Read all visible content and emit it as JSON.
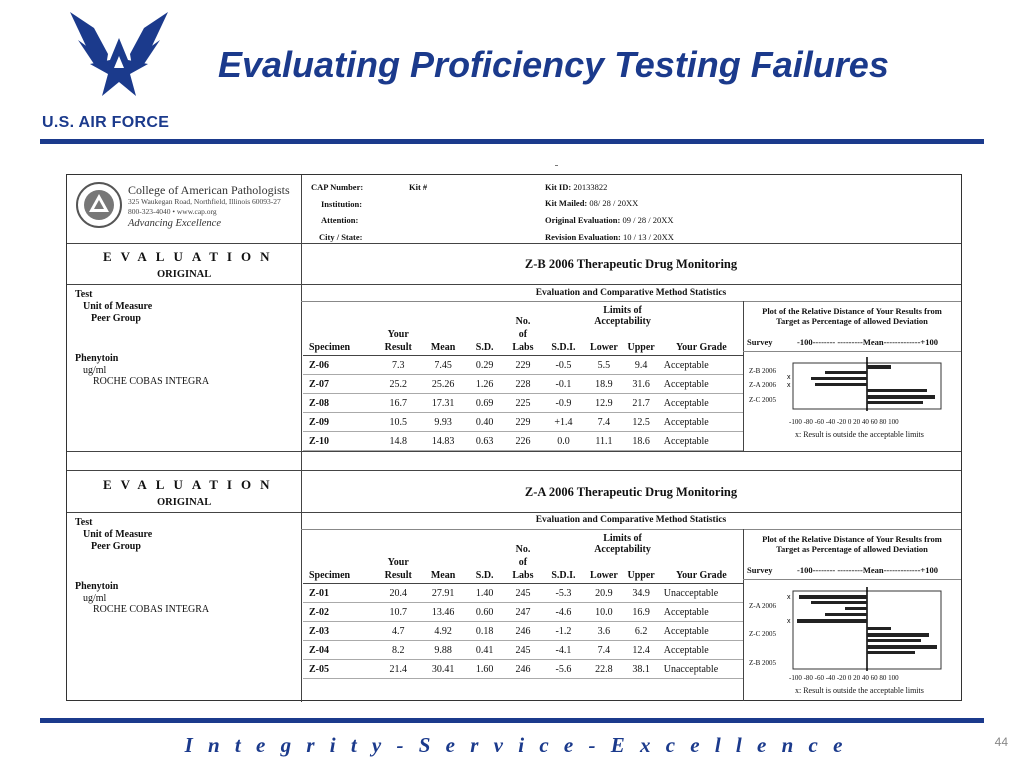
{
  "slide": {
    "title": "Evaluating Proficiency Testing Failures",
    "org_label": "U.S. AIR FORCE",
    "footer": "I n t e g r i t y - S e r v i c e - E x c e l l e n c e",
    "page_number": "44",
    "brand_color": "#1b3a8c"
  },
  "form": {
    "org": {
      "name": "College of American Pathologists",
      "address": "325 Waukegan Road, Northfield, Illinois 60093-27",
      "phone_web": "800-323-4040 • www.cap.org",
      "tagline": "Advancing Excellence"
    },
    "header": {
      "cap_number_label": "CAP Number:",
      "kit_label": "Kit #",
      "institution_label": "Institution:",
      "attention_label": "Attention:",
      "city_state_label": "City / State:",
      "kit_id_label": "Kit ID:",
      "kit_id": "20133822",
      "kit_mailed_label": "Kit Mailed:",
      "kit_mailed": "08/ 28 / 20XX",
      "orig_eval_label": "Original Evaluation:",
      "orig_eval": "09 / 28 / 20XX",
      "revision_eval_label": "Revision Evaluation:",
      "revision_eval": "10 / 13 / 20XX"
    },
    "columns": {
      "specimen": "Specimen",
      "your": "Your",
      "result": "Result",
      "mean": "Mean",
      "sd": "S.D.",
      "no": "No.",
      "of": "of",
      "labs": "Labs",
      "sdi": "S.D.I.",
      "limits_1": "Limits of",
      "limits_2": "Acceptability",
      "lower": "Lower",
      "upper": "Upper",
      "grade": "Your Grade"
    },
    "sections": [
      {
        "eval_word": "EVALUATION",
        "eval_type": "ORIGINAL",
        "title": "Z-B 2006 Therapeutic Drug Monitoring",
        "stats_title": "Evaluation and Comparative Method Statistics",
        "left": {
          "test": "Test",
          "unit": "Unit of Measure",
          "peer": "Peer Group",
          "analyte": "Phenytoin",
          "unit_value": "ug/ml",
          "peer_value": "ROCHE COBAS INTEGRA"
        },
        "rows": [
          {
            "specimen": "Z-06",
            "result": "7.3",
            "mean": "7.45",
            "sd": "0.29",
            "labs": "229",
            "sdi": "-0.5",
            "lower": "5.5",
            "upper": "9.4",
            "grade": "Acceptable"
          },
          {
            "specimen": "Z-07",
            "result": "25.2",
            "mean": "25.26",
            "sd": "1.26",
            "labs": "228",
            "sdi": "-0.1",
            "lower": "18.9",
            "upper": "31.6",
            "grade": "Acceptable"
          },
          {
            "specimen": "Z-08",
            "result": "16.7",
            "mean": "17.31",
            "sd": "0.69",
            "labs": "225",
            "sdi": "-0.9",
            "lower": "12.9",
            "upper": "21.7",
            "grade": "Acceptable"
          },
          {
            "specimen": "Z-09",
            "result": "10.5",
            "mean": "9.93",
            "sd": "0.40",
            "labs": "229",
            "sdi": "+1.4",
            "lower": "7.4",
            "upper": "12.5",
            "grade": "Acceptable"
          },
          {
            "specimen": "Z-10",
            "result": "14.8",
            "mean": "14.83",
            "sd": "0.63",
            "labs": "226",
            "sdi": "0.0",
            "lower": "11.1",
            "upper": "18.6",
            "grade": "Acceptable"
          }
        ],
        "plot": {
          "title_1": "Plot of the Relative Distance of Your Results from",
          "title_2": "Target as Percentage of allowed Deviation",
          "survey_label": "Survey",
          "scale_label": "-100-------- ---------Mean-------------+100",
          "surveys": [
            "Z-B 2006",
            "Z-A 2006",
            "Z-C 2005"
          ],
          "axis_ticks": "-100 -80 -60 -40 -20  0  20  40  60  80  100",
          "note": "x: Result is outside the acceptable limits"
        }
      },
      {
        "eval_word": "EVALUATION",
        "eval_type": "ORIGINAL",
        "title": "Z-A 2006 Therapeutic Drug Monitoring",
        "stats_title": "Evaluation and Comparative Method Statistics",
        "left": {
          "test": "Test",
          "unit": "Unit of Measure",
          "peer": "Peer Group",
          "analyte": "Phenytoin",
          "unit_value": "ug/ml",
          "peer_value": "ROCHE COBAS INTEGRA"
        },
        "rows": [
          {
            "specimen": "Z-01",
            "result": "20.4",
            "mean": "27.91",
            "sd": "1.40",
            "labs": "245",
            "sdi": "-5.3",
            "lower": "20.9",
            "upper": "34.9",
            "grade": "Unacceptable"
          },
          {
            "specimen": "Z-02",
            "result": "10.7",
            "mean": "13.46",
            "sd": "0.60",
            "labs": "247",
            "sdi": "-4.6",
            "lower": "10.0",
            "upper": "16.9",
            "grade": "Acceptable"
          },
          {
            "specimen": "Z-03",
            "result": "4.7",
            "mean": "4.92",
            "sd": "0.18",
            "labs": "246",
            "sdi": "-1.2",
            "lower": "3.6",
            "upper": "6.2",
            "grade": "Acceptable"
          },
          {
            "specimen": "Z-04",
            "result": "8.2",
            "mean": "9.88",
            "sd": "0.41",
            "labs": "245",
            "sdi": "-4.1",
            "lower": "7.4",
            "upper": "12.4",
            "grade": "Acceptable"
          },
          {
            "specimen": "Z-05",
            "result": "21.4",
            "mean": "30.41",
            "sd": "1.60",
            "labs": "246",
            "sdi": "-5.6",
            "lower": "22.8",
            "upper": "38.1",
            "grade": "Unacceptable"
          }
        ],
        "plot": {
          "title_1": "Plot of the Relative Distance of Your Results from",
          "title_2": "Target as Percentage of allowed Deviation",
          "survey_label": "Survey",
          "scale_label": "-100-------- ---------Mean-------------+100",
          "surveys": [
            "Z-A 2006",
            "Z-C 2005",
            "Z-B 2005"
          ],
          "axis_ticks": "-100 -80 -60 -40 -20  0  20  40  60  80  100",
          "note": "x: Result is outside the acceptable limits"
        }
      }
    ]
  }
}
